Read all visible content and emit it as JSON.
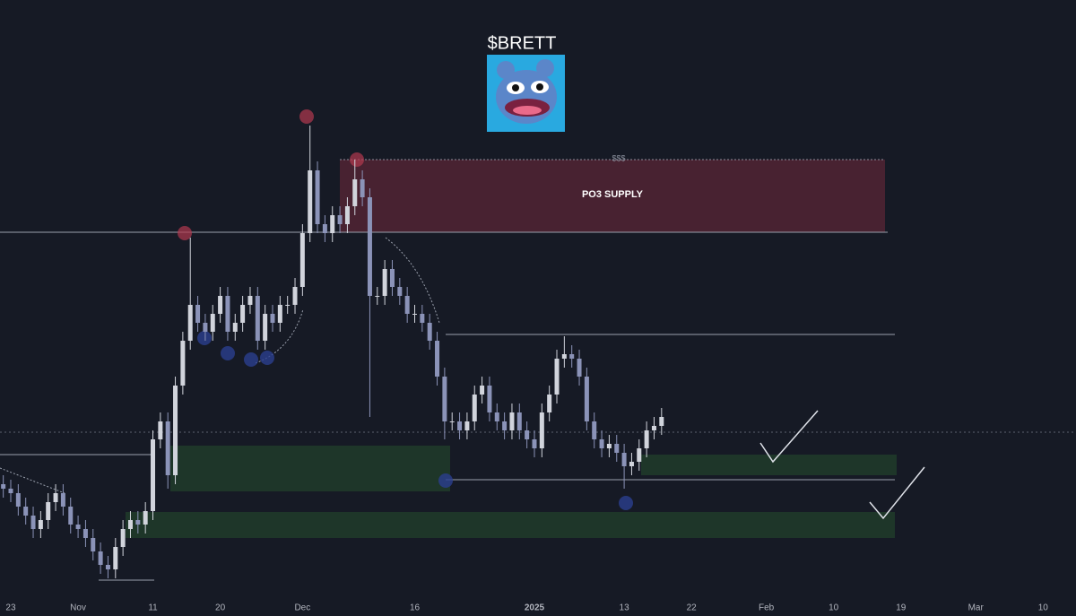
{
  "chart_data": {
    "type": "candlestick",
    "title": "$BRETT",
    "annotations": {
      "supply": "PO3 SUPPLY",
      "liquidity": "$$$"
    },
    "x": [
      -1,
      0,
      1,
      2,
      3,
      4,
      5,
      6,
      7,
      8,
      9,
      10,
      11,
      12,
      13,
      14,
      15,
      16,
      17,
      18,
      19,
      20,
      21,
      22,
      23,
      24,
      25,
      26,
      27,
      28,
      29,
      30,
      31,
      32,
      33,
      34,
      35,
      36,
      37,
      38,
      39,
      40,
      41,
      42,
      43,
      44,
      45,
      46,
      47,
      48,
      49,
      50,
      51,
      52,
      53,
      54,
      55,
      56,
      57,
      58,
      59,
      60,
      61,
      62,
      63,
      64,
      65,
      66,
      67,
      68,
      69,
      70,
      71,
      72,
      73,
      74,
      75,
      76,
      77,
      78,
      79,
      80,
      81,
      82,
      83,
      84,
      85,
      86,
      87
    ],
    "open": [
      147,
      142,
      137,
      122,
      112,
      97,
      107,
      127,
      137,
      122,
      102,
      97,
      87,
      72,
      57,
      52,
      77,
      97,
      107,
      102,
      117,
      197,
      217,
      157,
      257,
      307,
      347,
      327,
      317,
      337,
      357,
      317,
      327,
      347,
      357,
      307,
      337,
      327,
      347,
      347,
      367,
      427,
      497,
      437,
      427,
      447,
      437,
      457,
      487,
      467,
      357,
      357,
      387,
      367,
      357,
      337,
      337,
      327,
      307,
      267,
      217,
      217,
      207,
      217,
      247,
      257,
      227,
      217,
      207,
      227,
      207,
      197,
      187,
      227,
      247,
      287,
      292,
      287,
      267,
      217,
      197,
      187,
      192,
      182,
      167,
      172,
      187,
      207,
      212
    ],
    "high": [
      157,
      152,
      147,
      132,
      122,
      117,
      137,
      147,
      147,
      132,
      112,
      107,
      97,
      82,
      67,
      87,
      107,
      117,
      117,
      127,
      207,
      227,
      227,
      267,
      317,
      422,
      357,
      337,
      347,
      367,
      367,
      337,
      357,
      367,
      367,
      347,
      347,
      357,
      357,
      377,
      437,
      547,
      507,
      447,
      457,
      457,
      467,
      509,
      497,
      477,
      367,
      397,
      397,
      377,
      367,
      347,
      347,
      337,
      317,
      277,
      227,
      227,
      227,
      257,
      267,
      267,
      237,
      227,
      237,
      237,
      217,
      207,
      237,
      257,
      297,
      312,
      302,
      297,
      277,
      227,
      207,
      202,
      202,
      192,
      182,
      197,
      217,
      222,
      232
    ],
    "low": [
      132,
      127,
      112,
      102,
      87,
      87,
      97,
      117,
      112,
      92,
      87,
      77,
      62,
      47,
      42,
      42,
      67,
      87,
      92,
      92,
      107,
      187,
      142,
      147,
      247,
      297,
      317,
      307,
      307,
      327,
      307,
      307,
      317,
      337,
      297,
      297,
      317,
      317,
      337,
      337,
      357,
      417,
      427,
      417,
      417,
      427,
      427,
      447,
      457,
      222,
      347,
      347,
      357,
      347,
      327,
      327,
      317,
      297,
      257,
      197,
      207,
      197,
      197,
      207,
      237,
      217,
      207,
      197,
      197,
      197,
      187,
      177,
      177,
      217,
      237,
      277,
      277,
      257,
      207,
      187,
      177,
      177,
      172,
      142,
      157,
      162,
      177,
      197,
      202
    ],
    "close": [
      142,
      137,
      122,
      112,
      97,
      107,
      127,
      137,
      122,
      102,
      97,
      87,
      72,
      57,
      52,
      77,
      97,
      107,
      102,
      117,
      197,
      217,
      157,
      257,
      307,
      347,
      327,
      317,
      337,
      357,
      317,
      327,
      347,
      357,
      307,
      337,
      327,
      347,
      347,
      367,
      427,
      497,
      437,
      427,
      447,
      437,
      457,
      487,
      467,
      357,
      357,
      387,
      367,
      357,
      337,
      337,
      327,
      307,
      267,
      217,
      217,
      207,
      217,
      247,
      257,
      227,
      217,
      207,
      227,
      207,
      197,
      187,
      227,
      247,
      287,
      292,
      287,
      267,
      217,
      197,
      187,
      192,
      182,
      167,
      172,
      187,
      207,
      212,
      222
    ],
    "up_color": "#d1d4dc",
    "down_color": "#8b93b8",
    "xlim": [
      -1.438,
      142.4
    ],
    "ylim": [
      0,
      687
    ],
    "xticks": [
      {
        "value": 0,
        "label": "23"
      },
      {
        "value": 9,
        "label": "Nov"
      },
      {
        "value": 19,
        "label": "11"
      },
      {
        "value": 28,
        "label": "20"
      },
      {
        "value": 39,
        "label": "Dec"
      },
      {
        "value": 54,
        "label": "16"
      },
      {
        "value": 70,
        "label": "2025"
      },
      {
        "value": 82,
        "label": "13"
      },
      {
        "value": 91,
        "label": "22"
      },
      {
        "value": 101,
        "label": "Feb"
      },
      {
        "value": 110,
        "label": "10"
      },
      {
        "value": 119,
        "label": "19"
      },
      {
        "value": 129,
        "label": "Mar"
      },
      {
        "value": 138,
        "label": "10"
      }
    ]
  }
}
